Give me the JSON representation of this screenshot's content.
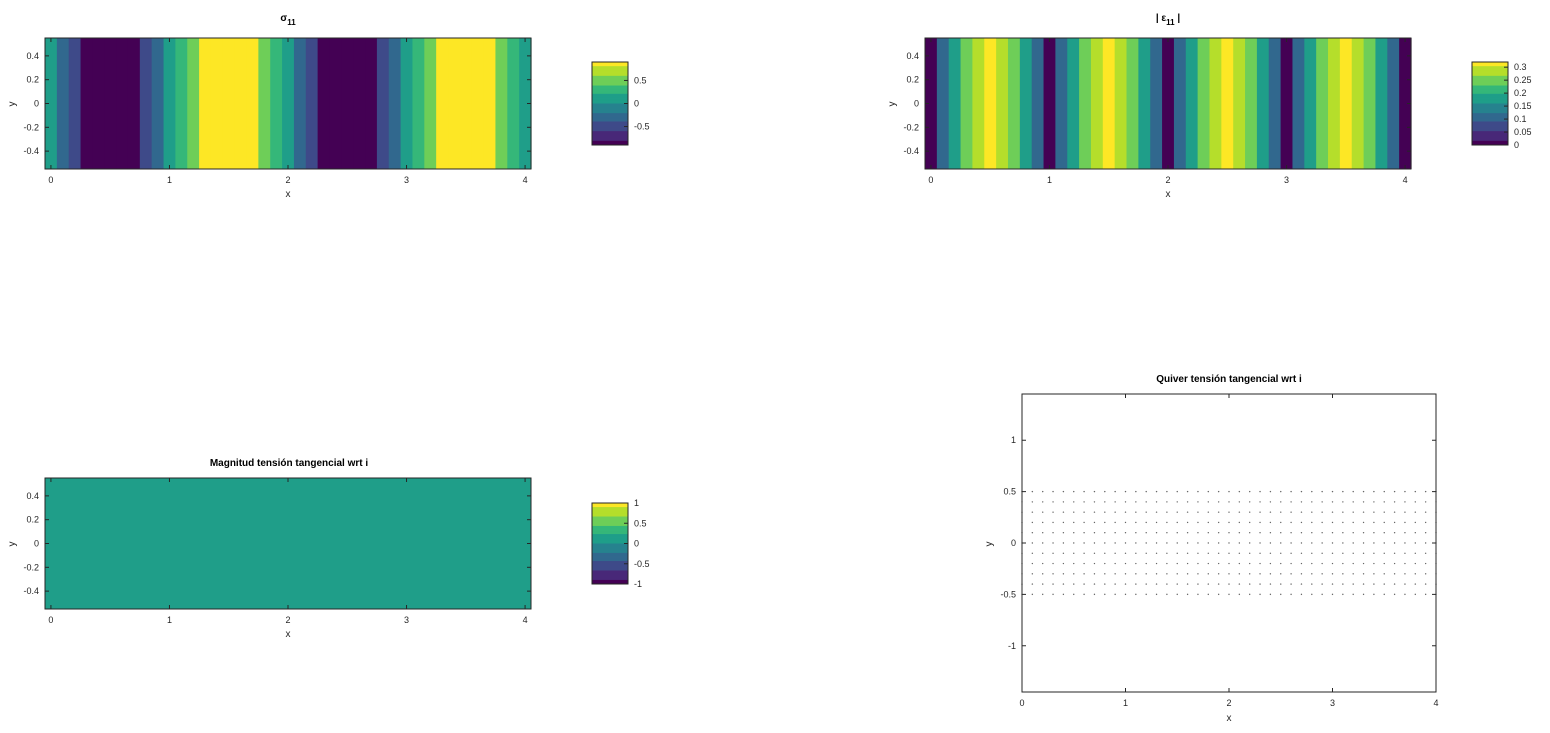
{
  "chart_data": [
    {
      "id": "sigma11",
      "type": "heatmap",
      "title_main": "σ",
      "title_sub": "11",
      "xlabel": "x",
      "ylabel": "y",
      "xlim": [
        -0.05,
        4.05
      ],
      "ylim": [
        -0.55,
        0.55
      ],
      "xticks": [
        0,
        1,
        2,
        3,
        4
      ],
      "yticks": [
        0.4,
        0.2,
        0,
        -0.2,
        -0.4
      ],
      "ytick_labels": [
        "0.4",
        "0.2",
        "0",
        "-0.2",
        "-0.4"
      ],
      "field": "cos(pi*x/2 + pi) along x, constant in y",
      "x_centers": [
        0,
        0.1,
        0.2,
        0.3,
        0.4,
        0.5,
        0.6,
        0.7,
        0.8,
        0.9,
        1.0,
        1.1,
        1.2,
        1.3,
        1.4,
        1.5,
        1.6,
        1.7,
        1.8,
        1.9,
        2.0,
        2.1,
        2.2,
        2.3,
        2.4,
        2.5,
        2.6,
        2.7,
        2.8,
        2.9,
        3.0,
        3.1,
        3.2,
        3.3,
        3.4,
        3.5,
        3.6,
        3.7,
        3.8,
        3.9,
        4.0
      ],
      "values": [
        0.0,
        -0.31,
        -0.59,
        -0.81,
        -0.95,
        -1.0,
        -0.95,
        -0.81,
        -0.59,
        -0.31,
        0.0,
        0.31,
        0.59,
        0.81,
        0.95,
        1.0,
        0.95,
        0.81,
        0.59,
        0.31,
        0.0,
        -0.31,
        -0.59,
        -0.81,
        -0.95,
        -1.0,
        -0.95,
        -0.81,
        -0.59,
        -0.31,
        0.0,
        0.31,
        0.59,
        0.81,
        0.95,
        1.0,
        0.95,
        0.81,
        0.59,
        0.31,
        0.0
      ],
      "clim": [
        -0.9,
        0.9
      ],
      "colorbar": {
        "ticks": [
          0.5,
          0,
          -0.5
        ],
        "tick_labels": [
          "0.5",
          "0",
          "-0.5"
        ],
        "range": [
          -0.9,
          0.9
        ]
      }
    },
    {
      "id": "eps11",
      "type": "heatmap",
      "title_main": "| ε",
      "title_sub": "11",
      "title_after": " |",
      "xlabel": "x",
      "ylabel": "y",
      "xlim": [
        -0.05,
        4.05
      ],
      "ylim": [
        -0.55,
        0.55
      ],
      "xticks": [
        0,
        1,
        2,
        3,
        4
      ],
      "yticks": [
        0.4,
        0.2,
        0,
        -0.2,
        -0.4
      ],
      "ytick_labels": [
        "0.4",
        "0.2",
        "0",
        "-0.2",
        "-0.4"
      ],
      "x_centers": [
        0,
        0.1,
        0.2,
        0.3,
        0.4,
        0.5,
        0.6,
        0.7,
        0.8,
        0.9,
        1.0,
        1.1,
        1.2,
        1.3,
        1.4,
        1.5,
        1.6,
        1.7,
        1.8,
        1.9,
        2.0,
        2.1,
        2.2,
        2.3,
        2.4,
        2.5,
        2.6,
        2.7,
        2.8,
        2.9,
        3.0,
        3.1,
        3.2,
        3.3,
        3.4,
        3.5,
        3.6,
        3.7,
        3.8,
        3.9,
        4.0
      ],
      "values": [
        0.0,
        0.1,
        0.19,
        0.26,
        0.3,
        0.32,
        0.3,
        0.26,
        0.19,
        0.1,
        0.0,
        0.1,
        0.19,
        0.26,
        0.3,
        0.32,
        0.3,
        0.26,
        0.19,
        0.1,
        0.0,
        0.1,
        0.19,
        0.26,
        0.3,
        0.32,
        0.3,
        0.26,
        0.19,
        0.1,
        0.0,
        0.1,
        0.19,
        0.26,
        0.3,
        0.32,
        0.3,
        0.26,
        0.19,
        0.1,
        0.0
      ],
      "clim": [
        0,
        0.32
      ],
      "colorbar": {
        "ticks": [
          0.3,
          0.25,
          0.2,
          0.15,
          0.1,
          0.05,
          0
        ],
        "tick_labels": [
          "0.3",
          "0.25",
          "0.2",
          "0.15",
          "0.1",
          "0.05",
          "0"
        ],
        "range": [
          0,
          0.32
        ]
      }
    },
    {
      "id": "magnitud",
      "type": "heatmap",
      "title": "Magnitud tensión tangencial wrt i",
      "xlabel": "x",
      "ylabel": "y",
      "xlim": [
        -0.05,
        4.05
      ],
      "ylim": [
        -0.55,
        0.55
      ],
      "xticks": [
        0,
        1,
        2,
        3,
        4
      ],
      "yticks": [
        0.4,
        0.2,
        0,
        -0.2,
        -0.4
      ],
      "ytick_labels": [
        "0.4",
        "0.2",
        "0",
        "-0.2",
        "-0.4"
      ],
      "constant_value": 0,
      "clim": [
        -1,
        1
      ],
      "colorbar": {
        "ticks": [
          1,
          0.5,
          0,
          -0.5,
          -1
        ],
        "tick_labels": [
          "1",
          "0.5",
          "0",
          "-0.5",
          "-1"
        ],
        "range": [
          -1,
          1
        ]
      }
    },
    {
      "id": "quiver",
      "type": "scatter",
      "title": "Quiver tensión tangencial wrt i",
      "xlabel": "x",
      "ylabel": "y",
      "xlim": [
        0,
        4
      ],
      "ylim": [
        -1.45,
        1.45
      ],
      "xticks": [
        0,
        1,
        2,
        3,
        4
      ],
      "yticks": [
        1,
        0.5,
        0,
        -0.5,
        -1
      ],
      "ytick_labels": [
        "1",
        "0.5",
        "0",
        "-0.5",
        "-1"
      ],
      "grid_x": {
        "start": 0,
        "stop": 4,
        "step": 0.1
      },
      "grid_y": {
        "start": -0.5,
        "stop": 0.5,
        "step": 0.1
      },
      "vector_magnitude": 0
    }
  ],
  "colormap": [
    "#440154",
    "#482878",
    "#3e4a89",
    "#31688e",
    "#26828e",
    "#1f9e89",
    "#35b779",
    "#6ece58",
    "#b5de2b",
    "#fde725"
  ],
  "colors": {
    "axis": "#262626",
    "dot": "#666666",
    "background": "#ffffff"
  }
}
